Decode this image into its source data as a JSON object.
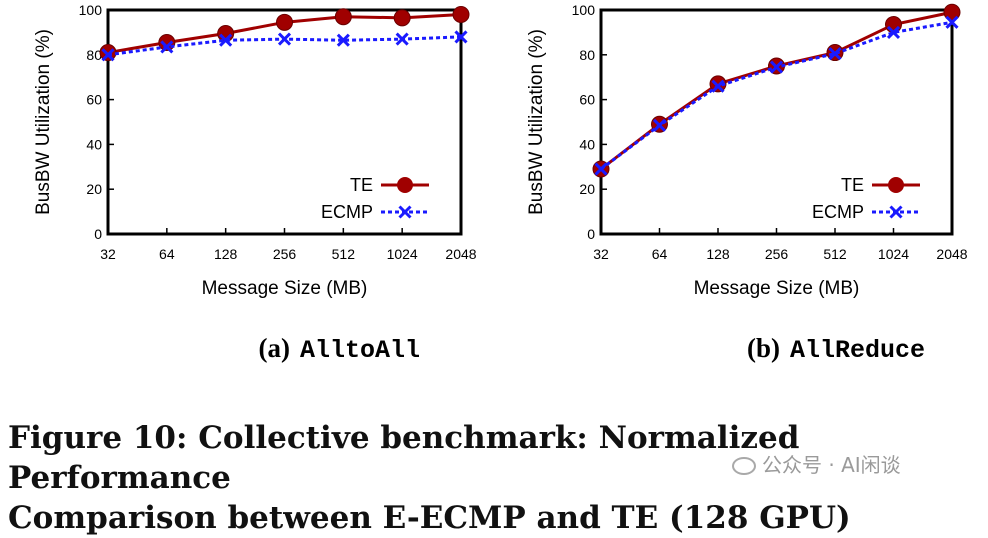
{
  "caption": {
    "line1": "Figure 10: Collective benchmark: Normalized Performance",
    "line2": "Comparison between E-ECMP and TE (128 GPU)"
  },
  "watermark": {
    "text": "公众号 · AI闲谈",
    "icon": "wechat-icon"
  },
  "colors": {
    "te": "#a00000",
    "ecmp": "#1a1aff"
  },
  "chart_data": [
    {
      "type": "line",
      "subtitle_label": "(a)",
      "subtitle_name": "AlltoAll",
      "xlabel": "Message Size (MB)",
      "ylabel": "BusBW Utilization (%)",
      "categories": [
        "32",
        "64",
        "128",
        "256",
        "512",
        "1024",
        "2048"
      ],
      "ylim": [
        0,
        100
      ],
      "yticks": [
        0,
        20,
        40,
        60,
        80,
        100
      ],
      "legend_position": "bottom-right",
      "series": [
        {
          "name": "TE",
          "style": "solid-circle",
          "values": [
            81,
            85.5,
            89.5,
            94.5,
            97,
            96.5,
            98
          ]
        },
        {
          "name": "ECMP",
          "style": "dotted-x",
          "values": [
            80,
            83.5,
            86.5,
            87,
            86.5,
            87,
            88
          ]
        }
      ]
    },
    {
      "type": "line",
      "subtitle_label": "(b)",
      "subtitle_name": "AllReduce",
      "xlabel": "Message Size (MB)",
      "ylabel": "BusBW Utilization (%)",
      "categories": [
        "32",
        "64",
        "128",
        "256",
        "512",
        "1024",
        "2048"
      ],
      "ylim": [
        0,
        100
      ],
      "yticks": [
        0,
        20,
        40,
        60,
        80,
        100
      ],
      "legend_position": "bottom-right",
      "series": [
        {
          "name": "TE",
          "style": "solid-circle",
          "values": [
            29,
            49,
            67,
            75,
            81,
            93.5,
            99
          ]
        },
        {
          "name": "ECMP",
          "style": "dotted-x",
          "values": [
            29,
            48.5,
            66,
            74.5,
            80.5,
            90,
            94.5
          ]
        }
      ]
    }
  ]
}
